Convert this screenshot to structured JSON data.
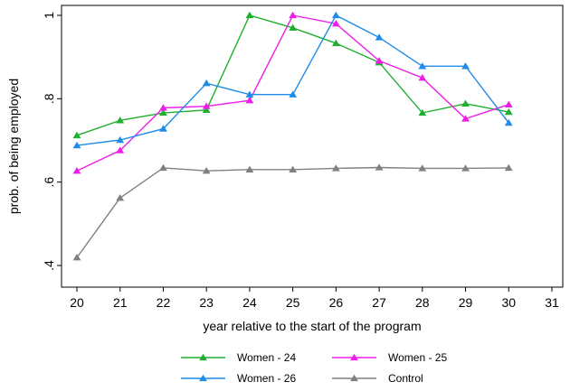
{
  "chart_data": {
    "type": "line",
    "title": "",
    "xlabel": "year relative to the start of the program",
    "ylabel": "prob. of being employed",
    "xlim": [
      20,
      31
    ],
    "ylim": [
      0.4,
      1.0
    ],
    "xticks": [
      20,
      21,
      22,
      23,
      24,
      25,
      26,
      27,
      28,
      29,
      30,
      31
    ],
    "yticks": [
      0.4,
      0.6,
      0.8,
      1.0
    ],
    "ytick_labels": [
      ".4",
      ".6",
      ".8",
      "1"
    ],
    "grid": false,
    "legend_position": "bottom",
    "series": [
      {
        "name": "Women - 24",
        "color": "#1faf2f",
        "x": [
          20,
          21,
          22,
          23,
          24,
          25,
          26,
          27,
          28,
          29,
          30
        ],
        "y": [
          0.712,
          0.748,
          0.766,
          0.773,
          1.0,
          0.97,
          0.933,
          0.887,
          0.766,
          0.788,
          0.768
        ]
      },
      {
        "name": "Women - 25",
        "color": "#ee1ee8",
        "x": [
          20,
          21,
          22,
          23,
          24,
          25,
          26,
          27,
          28,
          29,
          30
        ],
        "y": [
          0.627,
          0.676,
          0.778,
          0.782,
          0.796,
          1.0,
          0.98,
          0.891,
          0.85,
          0.752,
          0.786
        ]
      },
      {
        "name": "Women - 26",
        "color": "#1e8ce8",
        "x": [
          20,
          21,
          22,
          23,
          24,
          25,
          26,
          27,
          28,
          29,
          30
        ],
        "y": [
          0.688,
          0.701,
          0.728,
          0.837,
          0.81,
          0.81,
          1.0,
          0.947,
          0.878,
          0.878,
          0.742
        ]
      },
      {
        "name": "Control",
        "color": "#808080",
        "x": [
          20,
          21,
          22,
          23,
          24,
          25,
          26,
          27,
          28,
          29,
          30
        ],
        "y": [
          0.419,
          0.562,
          0.634,
          0.627,
          0.63,
          0.63,
          0.633,
          0.635,
          0.633,
          0.633,
          0.634
        ]
      }
    ]
  }
}
